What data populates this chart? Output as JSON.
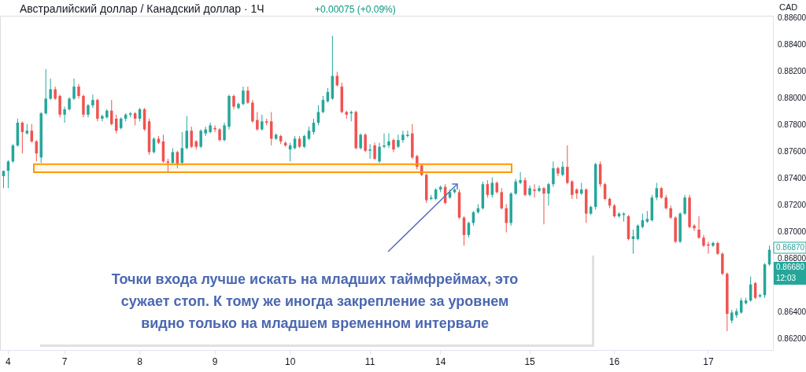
{
  "chart_data": {
    "type": "candlestick",
    "title": "Австралийский доллар / Канадский доллар · 1Ч",
    "subtitle": "+0.00075 (+0.09%)",
    "categories": [
      null,
      "4",
      null,
      null,
      null,
      null,
      null,
      null,
      null,
      null,
      null,
      null,
      null,
      "7",
      null,
      null,
      null,
      null,
      null,
      null,
      null,
      null,
      null,
      null,
      null,
      null,
      null,
      null,
      null,
      "8",
      null,
      null,
      null,
      null,
      null,
      null,
      null,
      null,
      null,
      null,
      null,
      null,
      null,
      null,
      null,
      "9",
      null,
      null,
      null,
      null,
      null,
      null,
      null,
      null,
      null,
      null,
      null,
      null,
      null,
      null,
      null,
      "10",
      null,
      null,
      null,
      null,
      null,
      null,
      null,
      null,
      null,
      null,
      null,
      null,
      null,
      null,
      null,
      null,
      "11",
      null,
      null,
      null,
      null,
      null,
      null,
      null,
      null,
      null,
      null,
      null,
      null,
      null,
      null,
      "14",
      null,
      null,
      null,
      null,
      null,
      null,
      null,
      null,
      null,
      null,
      null,
      null,
      null,
      null,
      null,
      null,
      null,
      null,
      "15",
      null,
      null,
      null,
      null,
      null,
      null,
      null,
      null,
      null,
      null,
      null,
      null,
      null,
      null,
      null,
      null,
      null,
      "16",
      null,
      null,
      null,
      null,
      null,
      null,
      null,
      null,
      null,
      null,
      null,
      null,
      null,
      null,
      null,
      null,
      null,
      null,
      null,
      "17",
      null,
      null,
      null,
      null,
      null,
      null,
      null,
      null,
      null,
      null,
      null,
      null,
      null
    ],
    "ohlc": [
      [
        0.8742,
        0.8746,
        0.8733,
        0.8746
      ],
      [
        0.8746,
        0.8754,
        0.8733,
        0.8753
      ],
      [
        0.8753,
        0.8766,
        0.8752,
        0.8765
      ],
      [
        0.8765,
        0.8785,
        0.8764,
        0.8782
      ],
      [
        0.8782,
        0.8783,
        0.8759,
        0.8775
      ],
      [
        0.8774,
        0.8781,
        0.8773,
        0.8776
      ],
      [
        0.8776,
        0.8781,
        0.8767,
        0.8768
      ],
      [
        0.8768,
        0.8769,
        0.8753,
        0.8759
      ],
      [
        0.8756,
        0.879,
        0.8752,
        0.8789
      ],
      [
        0.8789,
        0.8822,
        0.8788,
        0.88
      ],
      [
        0.88,
        0.8815,
        0.8799,
        0.8807
      ],
      [
        0.8807,
        0.8809,
        0.8799,
        0.88
      ],
      [
        0.8802,
        0.8803,
        0.8786,
        0.8788
      ],
      [
        0.8788,
        0.8794,
        0.8782,
        0.8792
      ],
      [
        0.8792,
        0.8801,
        0.8791,
        0.88
      ],
      [
        0.88,
        0.8815,
        0.8799,
        0.8809
      ],
      [
        0.8809,
        0.8811,
        0.88,
        0.8802
      ],
      [
        0.8802,
        0.8803,
        0.8786,
        0.8788
      ],
      [
        0.8788,
        0.8796,
        0.8786,
        0.8795
      ],
      [
        0.8795,
        0.8803,
        0.8793,
        0.8799
      ],
      [
        0.8799,
        0.88,
        0.8783,
        0.8785
      ],
      [
        0.8785,
        0.8788,
        0.8783,
        0.8787
      ],
      [
        0.8786,
        0.8792,
        0.8785,
        0.8791
      ],
      [
        0.8791,
        0.8799,
        0.878,
        0.8781
      ],
      [
        0.8785,
        0.8788,
        0.8774,
        0.8776
      ],
      [
        0.8778,
        0.8786,
        0.8777,
        0.8785
      ],
      [
        0.8785,
        0.8789,
        0.8783,
        0.8788
      ],
      [
        0.8788,
        0.879,
        0.8786,
        0.8789
      ],
      [
        0.8789,
        0.879,
        0.878,
        0.8785
      ],
      [
        0.8785,
        0.8793,
        0.8783,
        0.8792
      ],
      [
        0.8792,
        0.8793,
        0.8776,
        0.8777
      ],
      [
        0.8783,
        0.8785,
        0.8758,
        0.876
      ],
      [
        0.876,
        0.8771,
        0.8759,
        0.877
      ],
      [
        0.877,
        0.8772,
        0.8766,
        0.8767
      ],
      [
        0.8768,
        0.8773,
        0.8752,
        0.8753
      ],
      [
        0.8753,
        0.8755,
        0.8745,
        0.8752
      ],
      [
        0.8752,
        0.8763,
        0.8751,
        0.876
      ],
      [
        0.876,
        0.8761,
        0.8748,
        0.8751
      ],
      [
        0.8752,
        0.8775,
        0.875,
        0.8763
      ],
      [
        0.8763,
        0.8787,
        0.8762,
        0.8776
      ],
      [
        0.8776,
        0.8779,
        0.8763,
        0.8764
      ],
      [
        0.8768,
        0.8769,
        0.8762,
        0.8764
      ],
      [
        0.8764,
        0.8777,
        0.8763,
        0.8776
      ],
      [
        0.8774,
        0.8779,
        0.8772,
        0.8777
      ],
      [
        0.8775,
        0.8782,
        0.8774,
        0.878
      ],
      [
        0.8778,
        0.878,
        0.8775,
        0.8777
      ],
      [
        0.8777,
        0.8778,
        0.8768,
        0.8769
      ],
      [
        0.8769,
        0.8782,
        0.8768,
        0.878
      ],
      [
        0.8779,
        0.8803,
        0.8777,
        0.8802
      ],
      [
        0.8802,
        0.8803,
        0.8792,
        0.8794
      ],
      [
        0.8793,
        0.8797,
        0.8792,
        0.8796
      ],
      [
        0.8796,
        0.8809,
        0.8795,
        0.8806
      ],
      [
        0.8806,
        0.8809,
        0.8796,
        0.8797
      ],
      [
        0.8797,
        0.8799,
        0.8782,
        0.8783
      ],
      [
        0.8784,
        0.879,
        0.8776,
        0.8777
      ],
      [
        0.8777,
        0.8788,
        0.8776,
        0.8783
      ],
      [
        0.8783,
        0.8785,
        0.878,
        0.8782
      ],
      [
        0.8783,
        0.879,
        0.8765,
        0.877
      ],
      [
        0.877,
        0.8774,
        0.8769,
        0.8773
      ],
      [
        0.8772,
        0.8773,
        0.8766,
        0.8768
      ],
      [
        0.8767,
        0.8768,
        0.8764,
        0.8765
      ],
      [
        0.8762,
        0.8767,
        0.8753,
        0.8765
      ],
      [
        0.8763,
        0.8772,
        0.8762,
        0.877
      ],
      [
        0.877,
        0.8772,
        0.8763,
        0.8764
      ],
      [
        0.8764,
        0.8773,
        0.8763,
        0.8772
      ],
      [
        0.877,
        0.8779,
        0.8769,
        0.8776
      ],
      [
        0.8775,
        0.8785,
        0.8773,
        0.8782
      ],
      [
        0.8782,
        0.8795,
        0.878,
        0.879
      ],
      [
        0.879,
        0.8802,
        0.8789,
        0.8799
      ],
      [
        0.8798,
        0.8808,
        0.8797,
        0.8805
      ],
      [
        0.88,
        0.8847,
        0.8799,
        0.8817
      ],
      [
        0.8817,
        0.882,
        0.8809,
        0.881
      ],
      [
        0.8809,
        0.8812,
        0.8789,
        0.879
      ],
      [
        0.879,
        0.8791,
        0.8785,
        0.8788
      ],
      [
        0.8789,
        0.8791,
        0.8783,
        0.879
      ],
      [
        0.879,
        0.8791,
        0.8762,
        0.8763
      ],
      [
        0.8763,
        0.8774,
        0.8762,
        0.8773
      ],
      [
        0.8773,
        0.8774,
        0.876,
        0.8761
      ],
      [
        0.8761,
        0.8766,
        0.8755,
        0.8762
      ],
      [
        0.8765,
        0.8767,
        0.8754,
        0.8755
      ],
      [
        0.8753,
        0.8767,
        0.8752,
        0.8764
      ],
      [
        0.8764,
        0.8774,
        0.8763,
        0.8765
      ],
      [
        0.8765,
        0.8774,
        0.8763,
        0.8768
      ],
      [
        0.8769,
        0.877,
        0.876,
        0.8762
      ],
      [
        0.8764,
        0.8773,
        0.8763,
        0.8769
      ],
      [
        0.8769,
        0.8776,
        0.8767,
        0.8773
      ],
      [
        0.8772,
        0.8776,
        0.8771,
        0.8773
      ],
      [
        0.8774,
        0.8781,
        0.8755,
        0.8756
      ],
      [
        0.8757,
        0.8758,
        0.8747,
        0.8749
      ],
      [
        0.875,
        0.8751,
        0.8742,
        0.8743
      ],
      [
        0.8743,
        0.8744,
        0.8722,
        0.8724
      ],
      [
        0.8725,
        0.8728,
        0.8724,
        0.8726
      ],
      [
        0.8725,
        0.8733,
        0.8724,
        0.8732
      ],
      [
        0.8732,
        0.8735,
        0.873,
        0.8734
      ],
      [
        0.8734,
        0.8736,
        0.8721,
        0.8722
      ],
      [
        0.8726,
        0.8732,
        0.8725,
        0.873
      ],
      [
        0.873,
        0.8733,
        0.8729,
        0.8732
      ],
      [
        0.873,
        0.8732,
        0.871,
        0.8711
      ],
      [
        0.8711,
        0.8712,
        0.869,
        0.8698
      ],
      [
        0.8698,
        0.8708,
        0.8696,
        0.8707
      ],
      [
        0.8707,
        0.8716,
        0.8705,
        0.8715
      ],
      [
        0.8715,
        0.8721,
        0.8714,
        0.8718
      ],
      [
        0.8718,
        0.8738,
        0.8717,
        0.8736
      ],
      [
        0.8736,
        0.8739,
        0.8726,
        0.8728
      ],
      [
        0.8728,
        0.8741,
        0.8726,
        0.8737
      ],
      [
        0.8737,
        0.8738,
        0.8729,
        0.873
      ],
      [
        0.873,
        0.8733,
        0.8717,
        0.8718
      ],
      [
        0.8718,
        0.8721,
        0.87,
        0.8707
      ],
      [
        0.8707,
        0.873,
        0.8705,
        0.8729
      ],
      [
        0.8729,
        0.874,
        0.8728,
        0.8738
      ],
      [
        0.8737,
        0.8745,
        0.8736,
        0.8739
      ],
      [
        0.8739,
        0.8741,
        0.8727,
        0.8728
      ],
      [
        0.8728,
        0.8735,
        0.8727,
        0.8733
      ],
      [
        0.8732,
        0.8736,
        0.8726,
        0.8731
      ],
      [
        0.8731,
        0.8735,
        0.873,
        0.8733
      ],
      [
        0.8733,
        0.8734,
        0.8706,
        0.8729
      ],
      [
        0.8729,
        0.8737,
        0.872,
        0.8736
      ],
      [
        0.8736,
        0.8753,
        0.8734,
        0.8748
      ],
      [
        0.8748,
        0.8749,
        0.8742,
        0.8744
      ],
      [
        0.8743,
        0.8753,
        0.8742,
        0.8749
      ],
      [
        0.8749,
        0.8765,
        0.8736,
        0.8737
      ],
      [
        0.8738,
        0.8739,
        0.8725,
        0.8728
      ],
      [
        0.8732,
        0.8733,
        0.8725,
        0.8729
      ],
      [
        0.8729,
        0.8737,
        0.8728,
        0.8732
      ],
      [
        0.8732,
        0.8733,
        0.8707,
        0.8714
      ],
      [
        0.8714,
        0.872,
        0.8713,
        0.8719
      ],
      [
        0.8719,
        0.8752,
        0.8717,
        0.8751
      ],
      [
        0.8751,
        0.8753,
        0.8734,
        0.8736
      ],
      [
        0.8736,
        0.8737,
        0.8724,
        0.8725
      ],
      [
        0.8725,
        0.8726,
        0.8718,
        0.872
      ],
      [
        0.872,
        0.8721,
        0.8711,
        0.8712
      ],
      [
        0.8712,
        0.8715,
        0.8711,
        0.8714
      ],
      [
        0.8713,
        0.8715,
        0.8708,
        0.8714
      ],
      [
        0.8712,
        0.8713,
        0.8694,
        0.8695
      ],
      [
        0.8695,
        0.8702,
        0.8684,
        0.8697
      ],
      [
        0.8695,
        0.8706,
        0.8694,
        0.8705
      ],
      [
        0.8704,
        0.8714,
        0.8703,
        0.8709
      ],
      [
        0.8708,
        0.8716,
        0.8707,
        0.871
      ],
      [
        0.8709,
        0.8728,
        0.8708,
        0.8726
      ],
      [
        0.8726,
        0.8737,
        0.8724,
        0.8733
      ],
      [
        0.8733,
        0.8734,
        0.8725,
        0.8726
      ],
      [
        0.8726,
        0.8728,
        0.8717,
        0.8718
      ],
      [
        0.8718,
        0.872,
        0.871,
        0.8711
      ],
      [
        0.8711,
        0.8712,
        0.8692,
        0.8693
      ],
      [
        0.8693,
        0.8715,
        0.8692,
        0.8714
      ],
      [
        0.8714,
        0.8728,
        0.8713,
        0.8726
      ],
      [
        0.8726,
        0.8728,
        0.8703,
        0.8704
      ],
      [
        0.8705,
        0.8706,
        0.8701,
        0.8703
      ],
      [
        0.8702,
        0.8712,
        0.8695,
        0.8696
      ],
      [
        0.8696,
        0.8698,
        0.8689,
        0.869
      ],
      [
        0.8691,
        0.8693,
        0.8684,
        0.869
      ],
      [
        0.869,
        0.8693,
        0.8689,
        0.8692
      ],
      [
        0.8692,
        0.8693,
        0.8683,
        0.8684
      ],
      [
        0.8684,
        0.8685,
        0.8668,
        0.8669
      ],
      [
        0.8669,
        0.867,
        0.8626,
        0.8639
      ],
      [
        0.8634,
        0.8642,
        0.8632,
        0.864
      ],
      [
        0.8638,
        0.8643,
        0.8636,
        0.8641
      ],
      [
        0.864,
        0.8651,
        0.8639,
        0.8649
      ],
      [
        0.8647,
        0.8651,
        0.8646,
        0.8649
      ],
      [
        0.8649,
        0.8667,
        0.8648,
        0.8661
      ],
      [
        0.8662,
        0.8663,
        0.865,
        0.8651
      ],
      [
        0.8652,
        0.8654,
        0.8651,
        0.8653
      ],
      [
        0.8653,
        0.8677,
        0.8651,
        0.8676
      ],
      [
        0.8676,
        0.869,
        0.8675,
        0.8687
      ]
    ],
    "colors": [
      "#26a69a",
      "#26a69a",
      "#26a69a",
      "#26a69a",
      "#ef5350",
      "#26a69a",
      "#ef5350",
      "#ef5350",
      "#26a69a",
      "#26a69a",
      "#26a69a",
      "#ef5350",
      "#ef5350",
      "#26a69a",
      "#26a69a",
      "#26a69a",
      "#ef5350",
      "#ef5350",
      "#26a69a",
      "#26a69a",
      "#ef5350",
      "#26a69a",
      "#26a69a",
      "#ef5350",
      "#ef5350",
      "#26a69a",
      "#26a69a",
      "#26a69a",
      "#ef5350",
      "#26a69a",
      "#ef5350",
      "#ef5350",
      "#26a69a",
      "#ef5350",
      "#ef5350",
      "#ef5350",
      "#26a69a",
      "#ef5350",
      "#26a69a",
      "#26a69a",
      "#ef5350",
      "#ef5350",
      "#26a69a",
      "#26a69a",
      "#26a69a",
      "#ef5350",
      "#ef5350",
      "#26a69a",
      "#26a69a",
      "#ef5350",
      "#26a69a",
      "#26a69a",
      "#ef5350",
      "#ef5350",
      "#ef5350",
      "#26a69a",
      "#ef5350",
      "#ef5350",
      "#26a69a",
      "#ef5350",
      "#ef5350",
      "#26a69a",
      "#26a69a",
      "#ef5350",
      "#26a69a",
      "#26a69a",
      "#26a69a",
      "#26a69a",
      "#26a69a",
      "#26a69a",
      "#26a69a",
      "#ef5350",
      "#ef5350",
      "#ef5350",
      "#26a69a",
      "#ef5350",
      "#26a69a",
      "#ef5350",
      "#26a69a",
      "#ef5350",
      "#26a69a",
      "#26a69a",
      "#26a69a",
      "#ef5350",
      "#26a69a",
      "#26a69a",
      "#26a69a",
      "#ef5350",
      "#ef5350",
      "#ef5350",
      "#ef5350",
      "#26a69a",
      "#26a69a",
      "#26a69a",
      "#ef5350",
      "#26a69a",
      "#26a69a",
      "#ef5350",
      "#ef5350",
      "#26a69a",
      "#26a69a",
      "#26a69a",
      "#26a69a",
      "#ef5350",
      "#26a69a",
      "#ef5350",
      "#ef5350",
      "#ef5350",
      "#26a69a",
      "#26a69a",
      "#26a69a",
      "#ef5350",
      "#26a69a",
      "#ef5350",
      "#26a69a",
      "#ef5350",
      "#26a69a",
      "#26a69a",
      "#ef5350",
      "#26a69a",
      "#ef5350",
      "#ef5350",
      "#ef5350",
      "#26a69a",
      "#ef5350",
      "#26a69a",
      "#26a69a",
      "#ef5350",
      "#ef5350",
      "#ef5350",
      "#ef5350",
      "#26a69a",
      "#26a69a",
      "#ef5350",
      "#26a69a",
      "#26a69a",
      "#26a69a",
      "#26a69a",
      "#26a69a",
      "#26a69a",
      "#ef5350",
      "#ef5350",
      "#ef5350",
      "#ef5350",
      "#26a69a",
      "#26a69a",
      "#ef5350",
      "#ef5350",
      "#ef5350",
      "#ef5350",
      "#ef5350",
      "#26a69a",
      "#ef5350",
      "#ef5350",
      "#ef5350",
      "#26a69a",
      "#26a69a",
      "#26a69a",
      "#26a69a",
      "#26a69a",
      "#ef5350",
      "#26a69a",
      "#26a69a",
      "#26a69a"
    ],
    "ylim": [
      0.8612,
      0.8862
    ],
    "yticks": [
      {
        "value": 0.862,
        "label": "0.86200"
      },
      {
        "value": 0.864,
        "label": "0.86400"
      },
      {
        "value": 0.868,
        "label": "0.86800"
      },
      {
        "value": 0.87,
        "label": "0.87000"
      },
      {
        "value": 0.872,
        "label": "0.87200"
      },
      {
        "value": 0.874,
        "label": "0.87400"
      },
      {
        "value": 0.876,
        "label": "0.87600"
      },
      {
        "value": 0.878,
        "label": "0.87800"
      },
      {
        "value": 0.88,
        "label": "0.88000"
      },
      {
        "value": 0.882,
        "label": "0.88200"
      },
      {
        "value": 0.884,
        "label": "0.88400"
      },
      {
        "value": 0.886,
        "label": "0.88600"
      }
    ],
    "grid": false,
    "bands": [
      {
        "axis": "y",
        "from": 0.8745,
        "to": 0.8751,
        "color": "#ff9800"
      }
    ],
    "annotations": [
      "Точки входа лучше искать на младших таймфреймах, это\nсужает стоп. К тому же иногда закрепление за уровнем\nвидно только на младшем временном интервале",
      "0.86870",
      "0.86680",
      "12:03",
      "CAD"
    ]
  }
}
